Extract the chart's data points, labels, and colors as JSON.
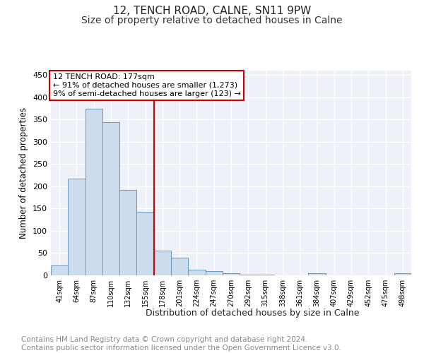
{
  "title": "12, TENCH ROAD, CALNE, SN11 9PW",
  "subtitle": "Size of property relative to detached houses in Calne",
  "xlabel": "Distribution of detached houses by size in Calne",
  "ylabel": "Number of detached properties",
  "categories": [
    "41sqm",
    "64sqm",
    "87sqm",
    "110sqm",
    "132sqm",
    "155sqm",
    "178sqm",
    "201sqm",
    "224sqm",
    "247sqm",
    "270sqm",
    "292sqm",
    "315sqm",
    "338sqm",
    "361sqm",
    "384sqm",
    "407sqm",
    "429sqm",
    "452sqm",
    "475sqm",
    "498sqm"
  ],
  "values": [
    22,
    218,
    375,
    345,
    192,
    142,
    55,
    39,
    13,
    9,
    5,
    2,
    1,
    0,
    0,
    4,
    0,
    0,
    0,
    0,
    4
  ],
  "bar_color": "#ccdcec",
  "bar_edge_color": "#6699bb",
  "vline_color": "#cc0000",
  "annotation_text": "12 TENCH ROAD: 177sqm\n← 91% of detached houses are smaller (1,273)\n9% of semi-detached houses are larger (123) →",
  "annotation_box_color": "#cc0000",
  "ylim": [
    0,
    460
  ],
  "yticks": [
    0,
    50,
    100,
    150,
    200,
    250,
    300,
    350,
    400,
    450
  ],
  "background_color": "#eef2f8",
  "footer_text": "Contains HM Land Registry data © Crown copyright and database right 2024.\nContains public sector information licensed under the Open Government Licence v3.0.",
  "title_fontsize": 11,
  "subtitle_fontsize": 10,
  "footer_fontsize": 7.5
}
